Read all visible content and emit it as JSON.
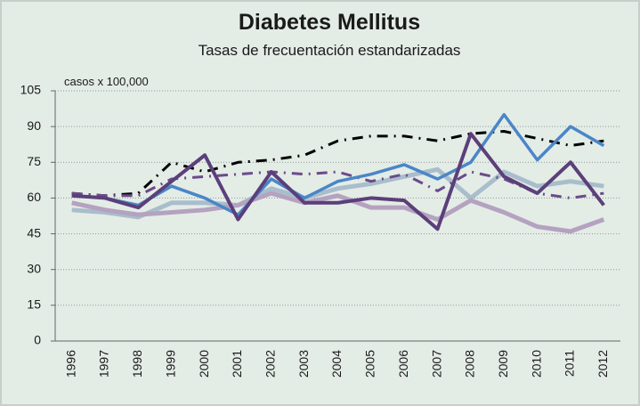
{
  "chart_data": {
    "type": "line",
    "title": "Diabetes Mellitus",
    "subtitle": "Tasas de frecuentación estandarizadas",
    "y_label": "casos x 100,000",
    "categories": [
      "1996",
      "1997",
      "1998",
      "1999",
      "2000",
      "2001",
      "2002",
      "2003",
      "2004",
      "2005",
      "2006",
      "2007",
      "2008",
      "2009",
      "2010",
      "2011",
      "2012"
    ],
    "series": [
      {
        "color": "#a9bdcc",
        "width": 5,
        "dash": "solid",
        "values": [
          55,
          54,
          52,
          58,
          58,
          57,
          64,
          60,
          64,
          66,
          69,
          72,
          60,
          71,
          65,
          67,
          65
        ]
      },
      {
        "color": "#b4a2c0",
        "width": 5,
        "dash": "solid",
        "values": [
          58,
          55,
          53,
          54,
          55,
          57,
          62,
          58,
          61,
          56,
          56,
          51,
          59,
          54,
          48,
          46,
          51
        ]
      },
      {
        "color": "#000000",
        "width": 3,
        "dash": "dashdot",
        "values": [
          62,
          61,
          62,
          75,
          71,
          75,
          76,
          78,
          84,
          86,
          86,
          84,
          87,
          88,
          85,
          82,
          84
        ]
      },
      {
        "color": "#6a4b8a",
        "width": 3,
        "dash": "dashdot",
        "values": [
          62,
          61,
          61,
          68,
          69,
          70,
          71,
          70,
          71,
          67,
          70,
          63,
          71,
          68,
          62,
          60,
          62
        ]
      },
      {
        "color": "#4a86c8",
        "width": 3.5,
        "dash": "solid",
        "values": [
          61,
          60,
          57,
          65,
          60,
          53,
          68,
          60,
          67,
          70,
          74,
          68,
          75,
          95,
          76,
          90,
          82
        ]
      },
      {
        "color": "#5b3f7a",
        "width": 4,
        "dash": "solid",
        "values": [
          61,
          60,
          56,
          67,
          78,
          51,
          71,
          58,
          58,
          60,
          59,
          47,
          87,
          69,
          62,
          75,
          57
        ]
      }
    ],
    "ylim": [
      0,
      105
    ],
    "yticks": [
      0,
      15,
      30,
      45,
      60,
      75,
      90,
      105
    ],
    "grid": true
  }
}
